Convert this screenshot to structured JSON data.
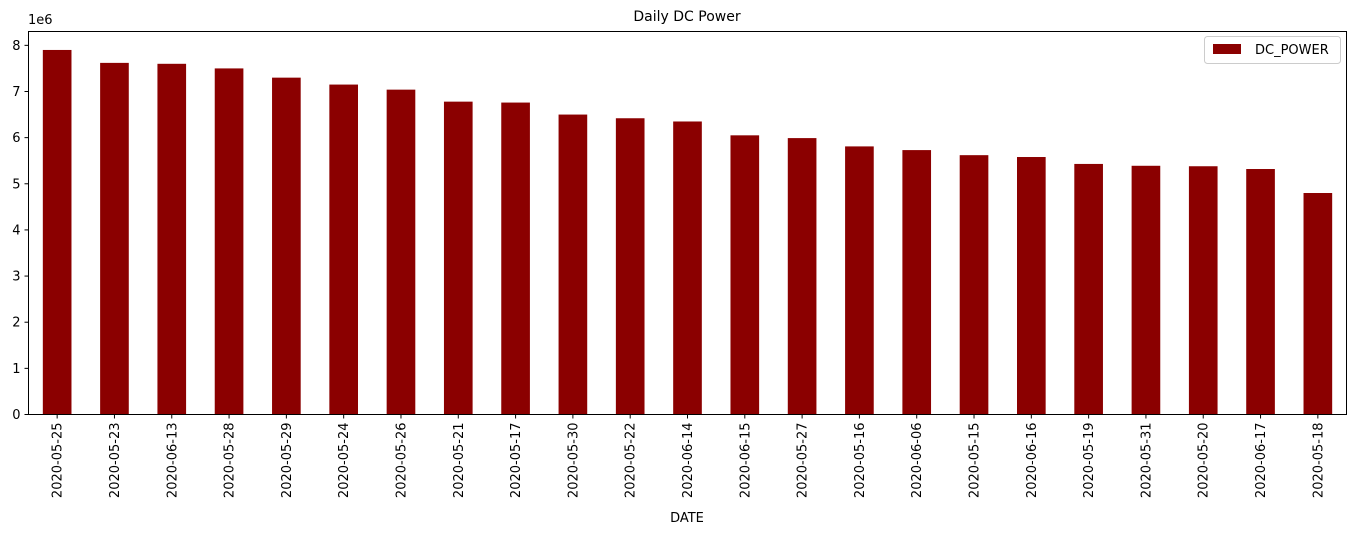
{
  "chart_data": {
    "type": "bar",
    "title": "Daily DC Power",
    "xlabel": "DATE",
    "ylabel": "",
    "offset_label": "1e6",
    "scale": 1000000,
    "categories": [
      "2020-05-25",
      "2020-05-23",
      "2020-06-13",
      "2020-05-28",
      "2020-05-29",
      "2020-05-24",
      "2020-05-26",
      "2020-05-21",
      "2020-05-17",
      "2020-05-30",
      "2020-05-22",
      "2020-06-14",
      "2020-06-15",
      "2020-05-27",
      "2020-05-16",
      "2020-06-06",
      "2020-05-15",
      "2020-06-16",
      "2020-05-19",
      "2020-05-31",
      "2020-05-20",
      "2020-06-17",
      "2020-05-18"
    ],
    "series": [
      {
        "name": "DC_POWER",
        "color": "#8b0000",
        "values": [
          7900000,
          7620000,
          7600000,
          7500000,
          7300000,
          7150000,
          7040000,
          6780000,
          6760000,
          6500000,
          6420000,
          6350000,
          6050000,
          5990000,
          5810000,
          5730000,
          5620000,
          5580000,
          5430000,
          5390000,
          5380000,
          5320000,
          4800000
        ]
      }
    ],
    "yticks": [
      0,
      1,
      2,
      3,
      4,
      5,
      6,
      7,
      8
    ],
    "ylim": [
      0,
      8300000
    ],
    "grid": false,
    "legend": "top-right"
  }
}
